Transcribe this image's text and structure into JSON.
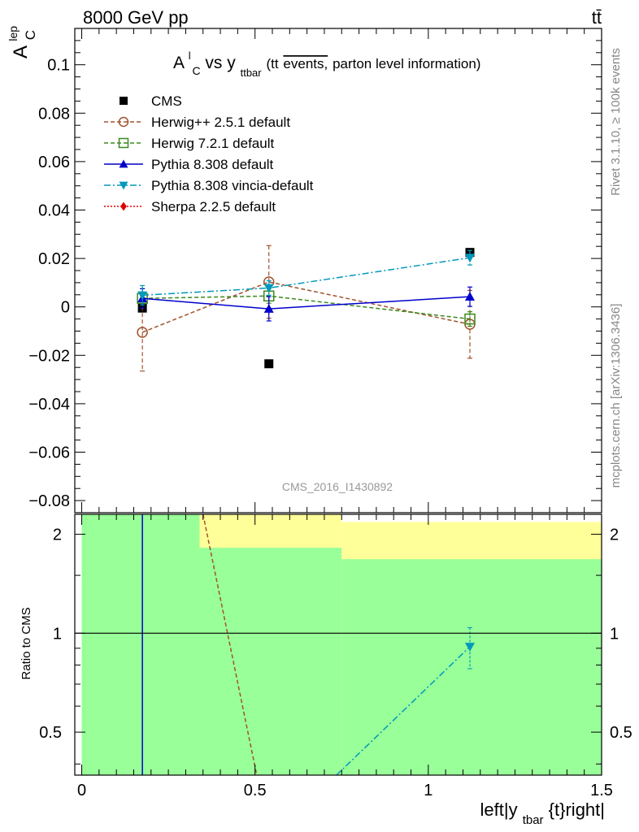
{
  "header": {
    "left": "8000 GeV pp",
    "right": "tt̄"
  },
  "side_labels": {
    "rivet": "Rivet 3.1.10, ≥ 100k events",
    "mcplots": "mcplots.cern.ch [arXiv:1306.3436]"
  },
  "watermark": "CMS_2016_I1430892",
  "colors": {
    "cms": "#000000",
    "herwig25": "#a0522d",
    "herwig72": "#3a8a1c",
    "pythia": "#0000cc",
    "vincia": "#0099bb",
    "sherpa": "#dd0000",
    "band_inner": "#99ff99",
    "band_outer": "#ffff99"
  },
  "chart_data": [
    {
      "type": "line",
      "title": "A_C^l vs y_ttbar (tt̄ events, parton level information)",
      "title_main": "A",
      "title_sup": "l",
      "title_sub": "C",
      "title_vs": " vs y",
      "title_vs_sub": "ttbar",
      "title_paren_open": " (tt",
      "title_overline": "events,",
      "title_rest": " parton level information)",
      "ylabel": "A",
      "ylabel_sup": "lep",
      "ylabel_sub": "C",
      "xlim": [
        -0.02,
        1.5
      ],
      "ylim": [
        -0.085,
        0.115
      ],
      "yticks": [
        -0.08,
        -0.06,
        -0.04,
        -0.02,
        0,
        0.02,
        0.04,
        0.06,
        0.08,
        0.1
      ],
      "ytick_labels": [
        "−0.08",
        "−0.06",
        "−0.04",
        "−0.02",
        "0",
        "0.02",
        "0.04",
        "0.06",
        "0.08",
        "0.1"
      ],
      "legend_position": "top-left",
      "series": [
        {
          "name": "CMS",
          "key": "cms",
          "style": "data",
          "marker": "square",
          "x": [
            0.175,
            0.54,
            1.12
          ],
          "y": [
            -0.0005,
            -0.0235,
            0.0225
          ],
          "err": [
            0.0,
            0.0,
            0.0
          ]
        },
        {
          "name": "Herwig++ 2.5.1 default",
          "key": "herwig25",
          "style": "dashed",
          "marker": "circle-open",
          "x": [
            0.175,
            0.54,
            1.12
          ],
          "y": [
            -0.0105,
            0.0103,
            -0.0072
          ],
          "err": [
            0.016,
            0.015,
            0.014
          ]
        },
        {
          "name": "Herwig 7.2.1 default",
          "key": "herwig72",
          "style": "dashed",
          "marker": "square-open",
          "x": [
            0.175,
            0.54,
            1.12
          ],
          "y": [
            0.0035,
            0.0045,
            -0.005
          ],
          "err": [
            0.004,
            0.003,
            0.003
          ]
        },
        {
          "name": "Pythia 8.308 default",
          "key": "pythia",
          "style": "solid",
          "marker": "triangle-up",
          "x": [
            0.175,
            0.54,
            1.12
          ],
          "y": [
            0.0035,
            -0.0008,
            0.0042
          ],
          "err": [
            0.004,
            0.005,
            0.004
          ]
        },
        {
          "name": "Pythia 8.308 vincia-default",
          "key": "vincia",
          "style": "dashdot",
          "marker": "triangle-down",
          "x": [
            0.175,
            0.54,
            1.12
          ],
          "y": [
            0.0048,
            0.0078,
            0.0203
          ],
          "err": [
            0.004,
            0.003,
            0.003
          ]
        },
        {
          "name": "Sherpa 2.2.5 default",
          "key": "sherpa",
          "style": "dotted",
          "marker": "diamond",
          "x": [],
          "y": [],
          "err": []
        }
      ]
    },
    {
      "type": "line",
      "title": "Ratio to CMS",
      "ylabel": "Ratio to CMS",
      "xlabel": "left|y_tbar{t}right|",
      "xlabel_a": "left|y",
      "xlabel_sub": "tbar",
      "xlabel_b": "{t}right|",
      "xlim": [
        -0.02,
        1.5
      ],
      "ylim": [
        0.37,
        2.3
      ],
      "yticks": [
        0.5,
        1,
        2
      ],
      "ytick_labels": [
        "0.5",
        "1",
        "2"
      ],
      "xticks": [
        0,
        0.5,
        1,
        1.5
      ],
      "xtick_labels": [
        "0",
        "0.5",
        "1",
        "1.5"
      ],
      "reference": 1.0,
      "bands": [
        {
          "x0": 0.0,
          "x1": 0.34,
          "inner": [
            0.37,
            2.3
          ],
          "outer": [
            0.37,
            2.3
          ]
        },
        {
          "x0": 0.34,
          "x1": 0.75,
          "inner": [
            0.37,
            1.82
          ],
          "outer": [
            0.37,
            2.3
          ]
        },
        {
          "x0": 0.75,
          "x1": 1.5,
          "inner": [
            0.37,
            1.68
          ],
          "outer": [
            0.37,
            2.18
          ]
        }
      ],
      "series": [
        {
          "key": "pythia",
          "style": "solid",
          "segments": [
            [
              [
                0.175,
                0.37
              ],
              [
                0.175,
                2.3
              ]
            ]
          ]
        },
        {
          "key": "herwig25",
          "style": "dashed",
          "segments": [
            [
              [
                0.35,
                2.3
              ],
              [
                0.505,
                0.37
              ]
            ]
          ]
        },
        {
          "key": "vincia",
          "style": "dashdot",
          "segments": [
            [
              [
                0.735,
                0.37
              ],
              [
                1.12,
                0.91
              ]
            ]
          ],
          "points": [
            {
              "x": 1.12,
              "y": 0.91,
              "err_lo": 0.13,
              "err_hi": 0.13
            }
          ]
        }
      ]
    }
  ]
}
